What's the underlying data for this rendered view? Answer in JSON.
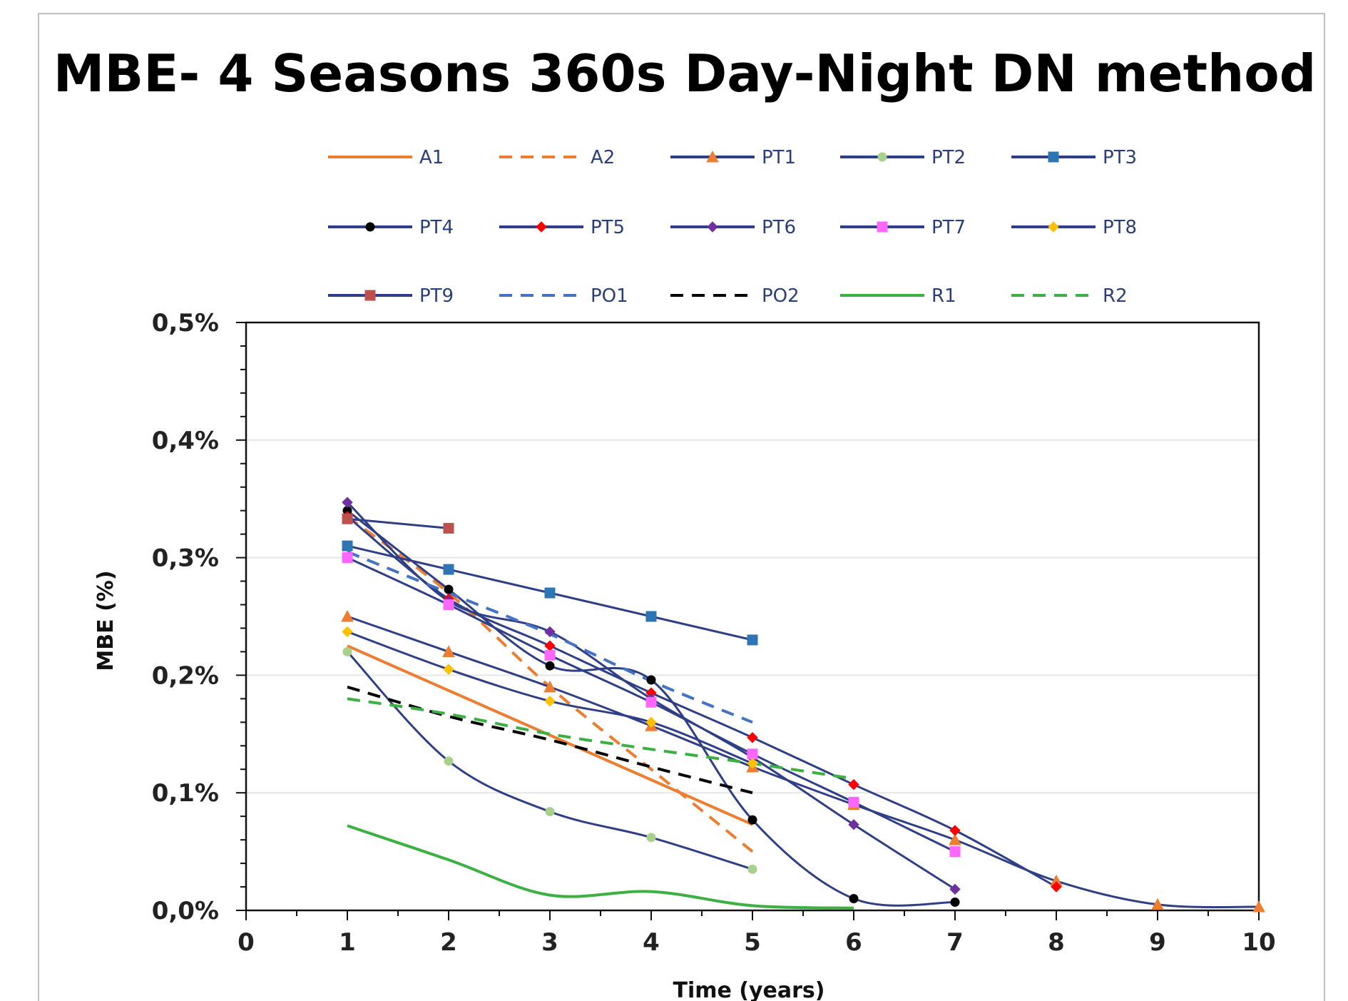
{
  "chart_data": {
    "type": "line",
    "title": "MBE- 4 Seasons 360s Day-Night DN method",
    "xlabel": "Time (years)",
    "ylabel": "MBE (%)",
    "xlim": [
      0,
      10
    ],
    "ylim": [
      0,
      0.5
    ],
    "x_ticks": [
      "0",
      "1",
      "2",
      "3",
      "4",
      "5",
      "6",
      "7",
      "8",
      "9",
      "10"
    ],
    "y_ticks": [
      "0,0%",
      "0,1%",
      "0,2%",
      "0,3%",
      "0,4%",
      "0,5%"
    ],
    "grid": "horizontal",
    "legend_position": "top",
    "series": [
      {
        "name": "A1",
        "color": "#ed7d31",
        "dash": "solid",
        "marker": "none",
        "x": [
          1,
          5
        ],
        "y": [
          0.225,
          0.073
        ]
      },
      {
        "name": "A2",
        "color": "#ed7d31",
        "dash": "dashed",
        "marker": "none",
        "x": [
          1,
          2,
          3,
          4,
          5
        ],
        "y": [
          0.335,
          0.27,
          0.19,
          0.12,
          0.05
        ]
      },
      {
        "name": "PT1",
        "color": "#2f3f86",
        "dash": "solid",
        "marker": "triangle",
        "marker_color": "#ed7d31",
        "x": [
          1,
          2,
          3,
          4,
          5,
          6,
          7,
          8,
          9,
          10
        ],
        "y": [
          0.25,
          0.22,
          0.19,
          0.157,
          0.122,
          0.09,
          0.06,
          0.025,
          0.005,
          0.003
        ]
      },
      {
        "name": "PT2",
        "color": "#2f3f86",
        "dash": "solid",
        "marker": "circle",
        "marker_color": "#a9d18e",
        "x": [
          1,
          2,
          3,
          4,
          5
        ],
        "y": [
          0.22,
          0.127,
          0.084,
          0.062,
          0.035
        ]
      },
      {
        "name": "PT3",
        "color": "#2f3f86",
        "dash": "solid",
        "marker": "square",
        "marker_color": "#2e75b6",
        "x": [
          1,
          2,
          3,
          4,
          5
        ],
        "y": [
          0.31,
          0.29,
          0.27,
          0.25,
          0.23
        ]
      },
      {
        "name": "PT4",
        "color": "#2f3f86",
        "dash": "solid",
        "marker": "circle",
        "marker_color": "#000000",
        "x": [
          1,
          2,
          3,
          4,
          5,
          6,
          7
        ],
        "y": [
          0.34,
          0.273,
          0.208,
          0.196,
          0.077,
          0.01,
          0.007
        ]
      },
      {
        "name": "PT5",
        "color": "#2f3f86",
        "dash": "solid",
        "marker": "diamond",
        "marker_color": "#ff0000",
        "x": [
          1,
          2,
          3,
          4,
          5,
          6,
          7,
          8
        ],
        "y": [
          0.335,
          0.265,
          0.225,
          0.185,
          0.147,
          0.107,
          0.068,
          0.02
        ]
      },
      {
        "name": "PT6",
        "color": "#2f3f86",
        "dash": "solid",
        "marker": "diamond",
        "marker_color": "#7030a0",
        "x": [
          1,
          2,
          3,
          4,
          5,
          6,
          7
        ],
        "y": [
          0.347,
          0.263,
          0.237,
          0.18,
          0.13,
          0.073,
          0.018
        ]
      },
      {
        "name": "PT7",
        "color": "#2f3f86",
        "dash": "solid",
        "marker": "square",
        "marker_color": "#ff66ff",
        "x": [
          1,
          2,
          3,
          4,
          5,
          6,
          7
        ],
        "y": [
          0.3,
          0.26,
          0.217,
          0.177,
          0.133,
          0.092,
          0.05
        ]
      },
      {
        "name": "PT8",
        "color": "#2f3f86",
        "dash": "solid",
        "marker": "diamond",
        "marker_color": "#ffc000",
        "x": [
          1,
          2,
          3,
          4,
          5
        ],
        "y": [
          0.237,
          0.205,
          0.178,
          0.16,
          0.125
        ]
      },
      {
        "name": "PT9",
        "color": "#2f3f86",
        "dash": "solid",
        "marker": "square",
        "marker_color": "#c0504d",
        "x": [
          1,
          2
        ],
        "y": [
          0.333,
          0.325
        ]
      },
      {
        "name": "PO1",
        "color": "#4472c4",
        "dash": "dashed",
        "marker": "none",
        "x": [
          1,
          2,
          3,
          4,
          5
        ],
        "y": [
          0.305,
          0.27,
          0.235,
          0.195,
          0.16
        ]
      },
      {
        "name": "PO2",
        "color": "#000000",
        "dash": "dashed",
        "marker": "none",
        "x": [
          1,
          2,
          3,
          4,
          5
        ],
        "y": [
          0.19,
          0.165,
          0.145,
          0.122,
          0.1
        ]
      },
      {
        "name": "R1",
        "color": "#3cb043",
        "dash": "solid",
        "marker": "none",
        "x": [
          1,
          2,
          3,
          4,
          5,
          6
        ],
        "y": [
          0.072,
          0.043,
          0.013,
          0.016,
          0.004,
          0.002
        ]
      },
      {
        "name": "R2",
        "color": "#3cb043",
        "dash": "dashed",
        "marker": "none",
        "x": [
          1,
          2,
          3,
          4,
          5,
          6
        ],
        "y": [
          0.18,
          0.167,
          0.15,
          0.137,
          0.125,
          0.112
        ]
      }
    ]
  }
}
